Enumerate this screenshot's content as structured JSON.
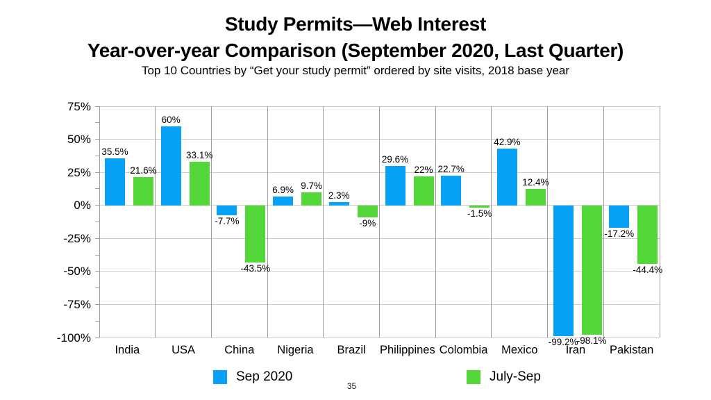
{
  "slide": {
    "title_line1": "Study Permits—Web Interest",
    "title_line2": "Year-over-year Comparison (September 2020, Last Quarter)",
    "subtitle": "Top 10 Countries by “Get your study permit” ordered by site visits, 2018 base year",
    "page_number": "35"
  },
  "chart_data": {
    "type": "bar",
    "title": "Study Permits—Web Interest — Year-over-year Comparison (September 2020, Last Quarter)",
    "subtitle": "Top 10 Countries by “Get your study permit” ordered by site visits, 2018 base year",
    "categories": [
      "India",
      "USA",
      "China",
      "Nigeria",
      "Brazil",
      "Philippines",
      "Colombia",
      "Mexico",
      "Iran",
      "Pakistan"
    ],
    "series": [
      {
        "name": "Sep 2020",
        "color": "#07a1f7",
        "values": [
          35.5,
          60,
          -7.7,
          6.9,
          2.3,
          29.6,
          22.7,
          42.9,
          -99.2,
          -17.2
        ],
        "labels": [
          "35.5%",
          "60%",
          "-7.7%",
          "6.9%",
          "2.3%",
          "29.6%",
          "22.7%",
          "42.9%",
          "-99.2%",
          "-17.2%"
        ]
      },
      {
        "name": "July-Sep",
        "color": "#53d637",
        "values": [
          21.6,
          33.1,
          -43.5,
          9.7,
          -9,
          22,
          -1.5,
          12.4,
          -98.1,
          -44.4
        ],
        "labels": [
          "21.6%",
          "33.1%",
          "-43.5%",
          "9.7%",
          "-9%",
          "22%",
          "-1.5%",
          "12.4%",
          "-98.1%",
          "-44.4%"
        ]
      }
    ],
    "xlabel": "",
    "ylabel": "",
    "ylim": [
      -100,
      75
    ],
    "yticks": {
      "values": [
        75,
        50,
        25,
        0,
        -25,
        -50,
        -75,
        -100
      ],
      "labels": [
        "75%",
        "50%",
        "25%",
        "0%",
        "-25%",
        "-50%",
        "-75%",
        "-100%"
      ]
    },
    "minor_tick_step": 12.5,
    "grid": true,
    "legend_position": "bottom"
  }
}
